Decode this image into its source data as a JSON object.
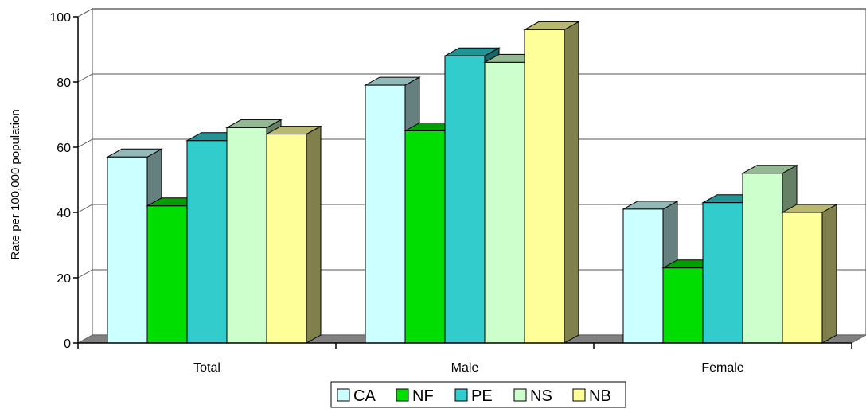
{
  "chart_data": {
    "type": "bar",
    "style": "3d-clustered-column",
    "categories": [
      "Total",
      "Male",
      "Female"
    ],
    "series": [
      {
        "name": "CA",
        "values": [
          57,
          79,
          41
        ],
        "color": "#ccffff"
      },
      {
        "name": "NF",
        "values": [
          42,
          65,
          23
        ],
        "color": "#00dd00"
      },
      {
        "name": "PE",
        "values": [
          62,
          88,
          43
        ],
        "color": "#33cccc"
      },
      {
        "name": "NS",
        "values": [
          66,
          86,
          52
        ],
        "color": "#ccffcc"
      },
      {
        "name": "NB",
        "values": [
          64,
          96,
          40
        ],
        "color": "#ffff99"
      }
    ],
    "ylabel": "Rate per 100,000 population",
    "xlabel": "",
    "title": "",
    "ylim": [
      0,
      100
    ],
    "yticks": [
      "0",
      "20",
      "40",
      "60",
      "80",
      "100"
    ],
    "grid": true,
    "legend_position": "bottom"
  }
}
